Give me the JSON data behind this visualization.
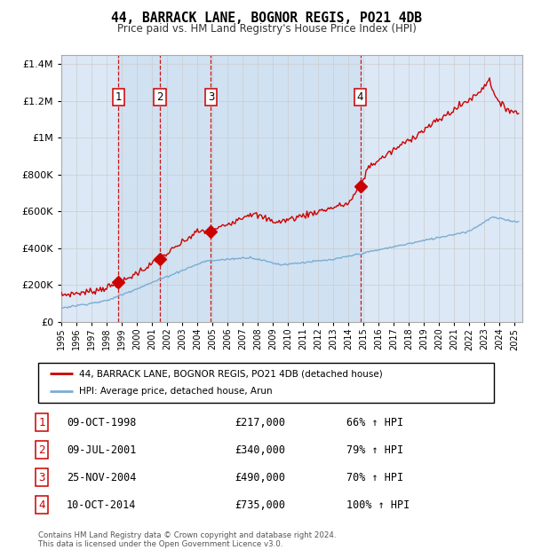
{
  "title": "44, BARRACK LANE, BOGNOR REGIS, PO21 4DB",
  "subtitle": "Price paid vs. HM Land Registry's House Price Index (HPI)",
  "ylim": [
    0,
    1450000
  ],
  "yticks": [
    0,
    200000,
    400000,
    600000,
    800000,
    1000000,
    1200000,
    1400000
  ],
  "ytick_labels": [
    "£0",
    "£200K",
    "£400K",
    "£600K",
    "£800K",
    "£1M",
    "£1.2M",
    "£1.4M"
  ],
  "background_color": "#ffffff",
  "grid_color": "#cccccc",
  "plot_bg_color": "#dce8f5",
  "red_line_color": "#cc0000",
  "blue_line_color": "#7aadd4",
  "shade_color": "#ccdff0",
  "vline_color": "#cc0000",
  "sale_points": [
    {
      "year": 1998.78,
      "price": 217000,
      "label": "1"
    },
    {
      "year": 2001.52,
      "price": 340000,
      "label": "2"
    },
    {
      "year": 2004.9,
      "price": 490000,
      "label": "3"
    },
    {
      "year": 2014.78,
      "price": 735000,
      "label": "4"
    }
  ],
  "table_rows": [
    {
      "num": "1",
      "date": "09-OCT-1998",
      "price": "£217,000",
      "hpi": "66% ↑ HPI"
    },
    {
      "num": "2",
      "date": "09-JUL-2001",
      "price": "£340,000",
      "hpi": "79% ↑ HPI"
    },
    {
      "num": "3",
      "date": "25-NOV-2004",
      "price": "£490,000",
      "hpi": "70% ↑ HPI"
    },
    {
      "num": "4",
      "date": "10-OCT-2014",
      "price": "£735,000",
      "hpi": "100% ↑ HPI"
    }
  ],
  "legend_entries": [
    {
      "label": "44, BARRACK LANE, BOGNOR REGIS, PO21 4DB (detached house)",
      "color": "#cc0000"
    },
    {
      "label": "HPI: Average price, detached house, Arun",
      "color": "#7aadd4"
    }
  ],
  "footnote": "Contains HM Land Registry data © Crown copyright and database right 2024.\nThis data is licensed under the Open Government Licence v3.0."
}
